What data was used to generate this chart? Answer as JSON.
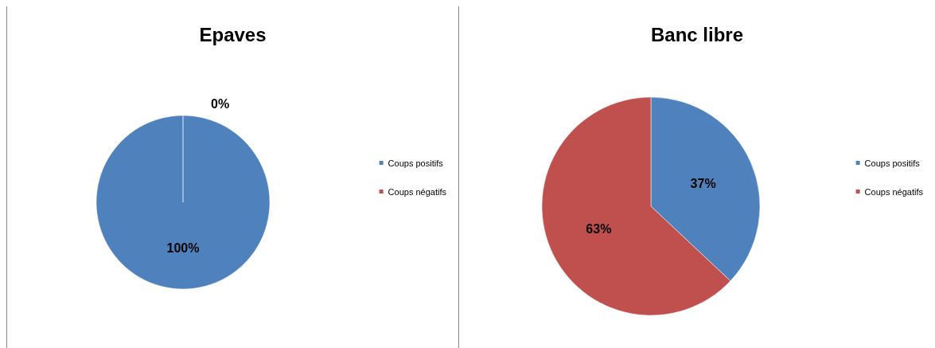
{
  "chart_data": [
    {
      "type": "pie",
      "title": "Epaves",
      "categories": [
        "Coups positifs",
        "Coups négatifs"
      ],
      "values": [
        100,
        0
      ],
      "colors": [
        "#4f81bd",
        "#c0504d"
      ],
      "value_labels": [
        "100%",
        "0%"
      ],
      "legend": "right"
    },
    {
      "type": "pie",
      "title": "Banc libre",
      "categories": [
        "Coups positifs",
        "Coups négatifs"
      ],
      "values": [
        37,
        63
      ],
      "colors": [
        "#4f81bd",
        "#c0504d"
      ],
      "value_labels": [
        "37%",
        "63%"
      ],
      "legend": "right"
    }
  ]
}
